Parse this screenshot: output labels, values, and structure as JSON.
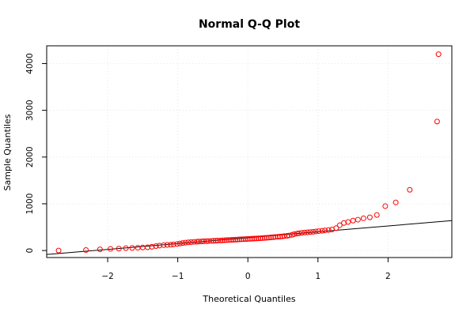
{
  "chart_data": {
    "type": "scatter",
    "title": "Normal Q-Q Plot",
    "xlabel": "Theoretical Quantiles",
    "ylabel": "Sample Quantiles",
    "xlim": [
      -2.87,
      2.91
    ],
    "ylim": [
      -150,
      4380
    ],
    "x_ticks": [
      -2,
      -1,
      0,
      1,
      2
    ],
    "y_ticks": [
      0,
      1000,
      2000,
      3000,
      4000
    ],
    "grid": true,
    "point_color": "#ff0000",
    "line_color": "#000000",
    "reference_line": {
      "x": [
        -2.87,
        2.91
      ],
      "y": [
        -85,
        640
      ]
    },
    "series": [
      {
        "points": [
          [
            -2.7,
            0
          ],
          [
            -2.31,
            10
          ],
          [
            -2.11,
            25
          ],
          [
            -1.96,
            35
          ],
          [
            -1.84,
            40
          ],
          [
            -1.74,
            50
          ],
          [
            -1.65,
            55
          ],
          [
            -1.57,
            60
          ],
          [
            -1.5,
            65
          ],
          [
            -1.43,
            70
          ],
          [
            -1.37,
            80
          ],
          [
            -1.31,
            95
          ],
          [
            -1.26,
            105
          ],
          [
            -1.2,
            115
          ],
          [
            -1.15,
            120
          ],
          [
            -1.1,
            125
          ],
          [
            -1.06,
            130
          ],
          [
            -1.01,
            140
          ],
          [
            -0.97,
            150
          ],
          [
            -0.93,
            160
          ],
          [
            -0.89,
            168
          ],
          [
            -0.85,
            175
          ],
          [
            -0.81,
            180
          ],
          [
            -0.77,
            185
          ],
          [
            -0.73,
            188
          ],
          [
            -0.7,
            192
          ],
          [
            -0.66,
            195
          ],
          [
            -0.63,
            198
          ],
          [
            -0.59,
            200
          ],
          [
            -0.56,
            203
          ],
          [
            -0.52,
            206
          ],
          [
            -0.49,
            208
          ],
          [
            -0.46,
            210
          ],
          [
            -0.43,
            213
          ],
          [
            -0.39,
            215
          ],
          [
            -0.36,
            218
          ],
          [
            -0.33,
            220
          ],
          [
            -0.3,
            223
          ],
          [
            -0.27,
            225
          ],
          [
            -0.24,
            228
          ],
          [
            -0.21,
            230
          ],
          [
            -0.18,
            233
          ],
          [
            -0.15,
            235
          ],
          [
            -0.12,
            238
          ],
          [
            -0.09,
            240
          ],
          [
            -0.06,
            243
          ],
          [
            -0.03,
            245
          ],
          [
            0.0,
            248
          ],
          [
            0.03,
            250
          ],
          [
            0.06,
            253
          ],
          [
            0.09,
            255
          ],
          [
            0.12,
            258
          ],
          [
            0.15,
            260
          ],
          [
            0.18,
            263
          ],
          [
            0.21,
            266
          ],
          [
            0.24,
            270
          ],
          [
            0.27,
            273
          ],
          [
            0.3,
            277
          ],
          [
            0.33,
            281
          ],
          [
            0.36,
            285
          ],
          [
            0.39,
            289
          ],
          [
            0.43,
            293
          ],
          [
            0.46,
            298
          ],
          [
            0.49,
            303
          ],
          [
            0.52,
            308
          ],
          [
            0.56,
            315
          ],
          [
            0.59,
            322
          ],
          [
            0.63,
            335
          ],
          [
            0.66,
            350
          ],
          [
            0.7,
            362
          ],
          [
            0.73,
            370
          ],
          [
            0.77,
            378
          ],
          [
            0.81,
            384
          ],
          [
            0.85,
            390
          ],
          [
            0.89,
            395
          ],
          [
            0.93,
            400
          ],
          [
            0.97,
            408
          ],
          [
            1.01,
            415
          ],
          [
            1.06,
            422
          ],
          [
            1.1,
            430
          ],
          [
            1.15,
            438
          ],
          [
            1.2,
            450
          ],
          [
            1.26,
            480
          ],
          [
            1.31,
            540
          ],
          [
            1.37,
            590
          ],
          [
            1.43,
            610
          ],
          [
            1.5,
            640
          ],
          [
            1.57,
            660
          ],
          [
            1.65,
            690
          ],
          [
            1.74,
            710
          ],
          [
            1.84,
            760
          ],
          [
            1.96,
            950
          ],
          [
            2.11,
            1030
          ],
          [
            2.31,
            1300
          ],
          [
            2.7,
            2760
          ],
          [
            2.72,
            4200
          ]
        ]
      }
    ]
  }
}
